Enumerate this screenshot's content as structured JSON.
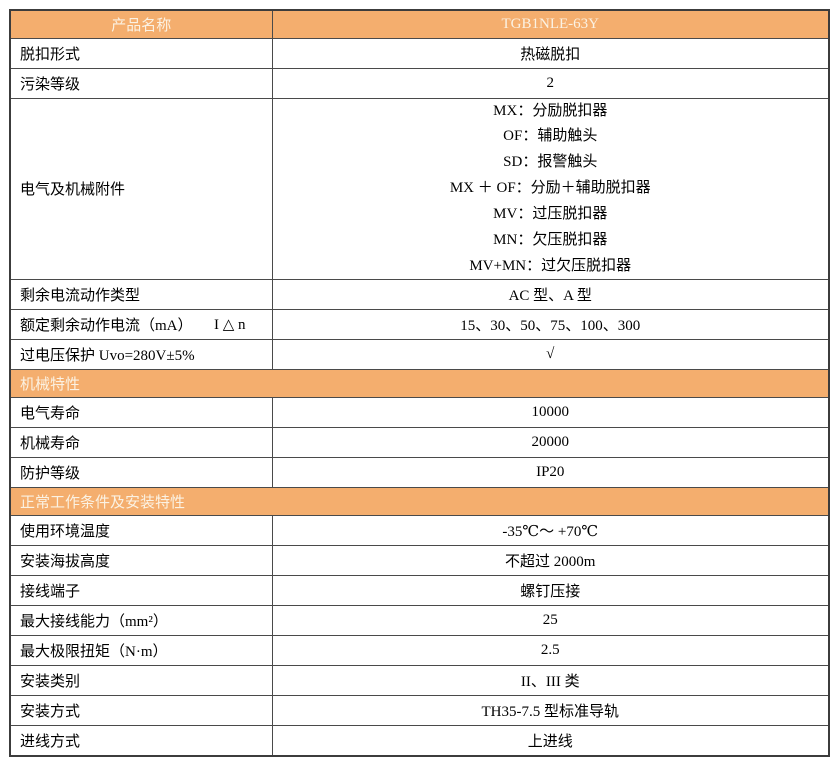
{
  "colors": {
    "header_bg": "#F4AE6E",
    "header_text": "#FBF2E3",
    "grid_line": "#4a4a4a",
    "grid_outer": "#3c3c3c",
    "body_text": "#000000"
  },
  "table": {
    "header": {
      "label": "产品名称",
      "value": "TGB1NLE-63Y"
    },
    "rows": [
      {
        "type": "row",
        "label": "脱扣形式",
        "value": "热磁脱扣"
      },
      {
        "type": "row",
        "label": "污染等级",
        "value": "2"
      },
      {
        "type": "multirow",
        "label": "电气及机械附件",
        "lines": [
          "MX：分励脱扣器",
          "OF：辅助触头",
          "SD：报警触头",
          "MX ＋ OF：分励＋辅助脱扣器",
          "MV：过压脱扣器",
          "MN：欠压脱扣器",
          "MV+MN：过欠压脱扣器"
        ]
      },
      {
        "type": "row",
        "label": "剩余电流动作类型",
        "value": "AC 型、A 型"
      },
      {
        "type": "row",
        "label": "额定剩余动作电流（mA）",
        "label_suffix": "I △ n",
        "value": "15、30、50、75、100、300"
      },
      {
        "type": "row",
        "label": "过电压保护 Uvo=280V±5%",
        "value": "√"
      },
      {
        "type": "section",
        "label": "机械特性"
      },
      {
        "type": "row",
        "label": "电气寿命",
        "value": "10000"
      },
      {
        "type": "row",
        "label": "机械寿命",
        "value": "20000"
      },
      {
        "type": "row",
        "label": "防护等级",
        "value": "IP20"
      },
      {
        "type": "section",
        "label": "正常工作条件及安装特性"
      },
      {
        "type": "row",
        "label": "使用环境温度",
        "value": "-35℃～ +70℃"
      },
      {
        "type": "row",
        "label": "安装海拔高度",
        "value": "不超过 2000m"
      },
      {
        "type": "row",
        "label": "接线端子",
        "value": "螺钉压接"
      },
      {
        "type": "row",
        "label": "最大接线能力（mm²）",
        "value": "25"
      },
      {
        "type": "row",
        "label": "最大极限扭矩（N·m）",
        "value": "2.5"
      },
      {
        "type": "row",
        "label": "安装类别",
        "value": "II、III 类"
      },
      {
        "type": "row",
        "label": "安装方式",
        "value": "TH35-7.5 型标准导轨"
      },
      {
        "type": "row",
        "label": "进线方式",
        "value": "上进线"
      }
    ]
  }
}
